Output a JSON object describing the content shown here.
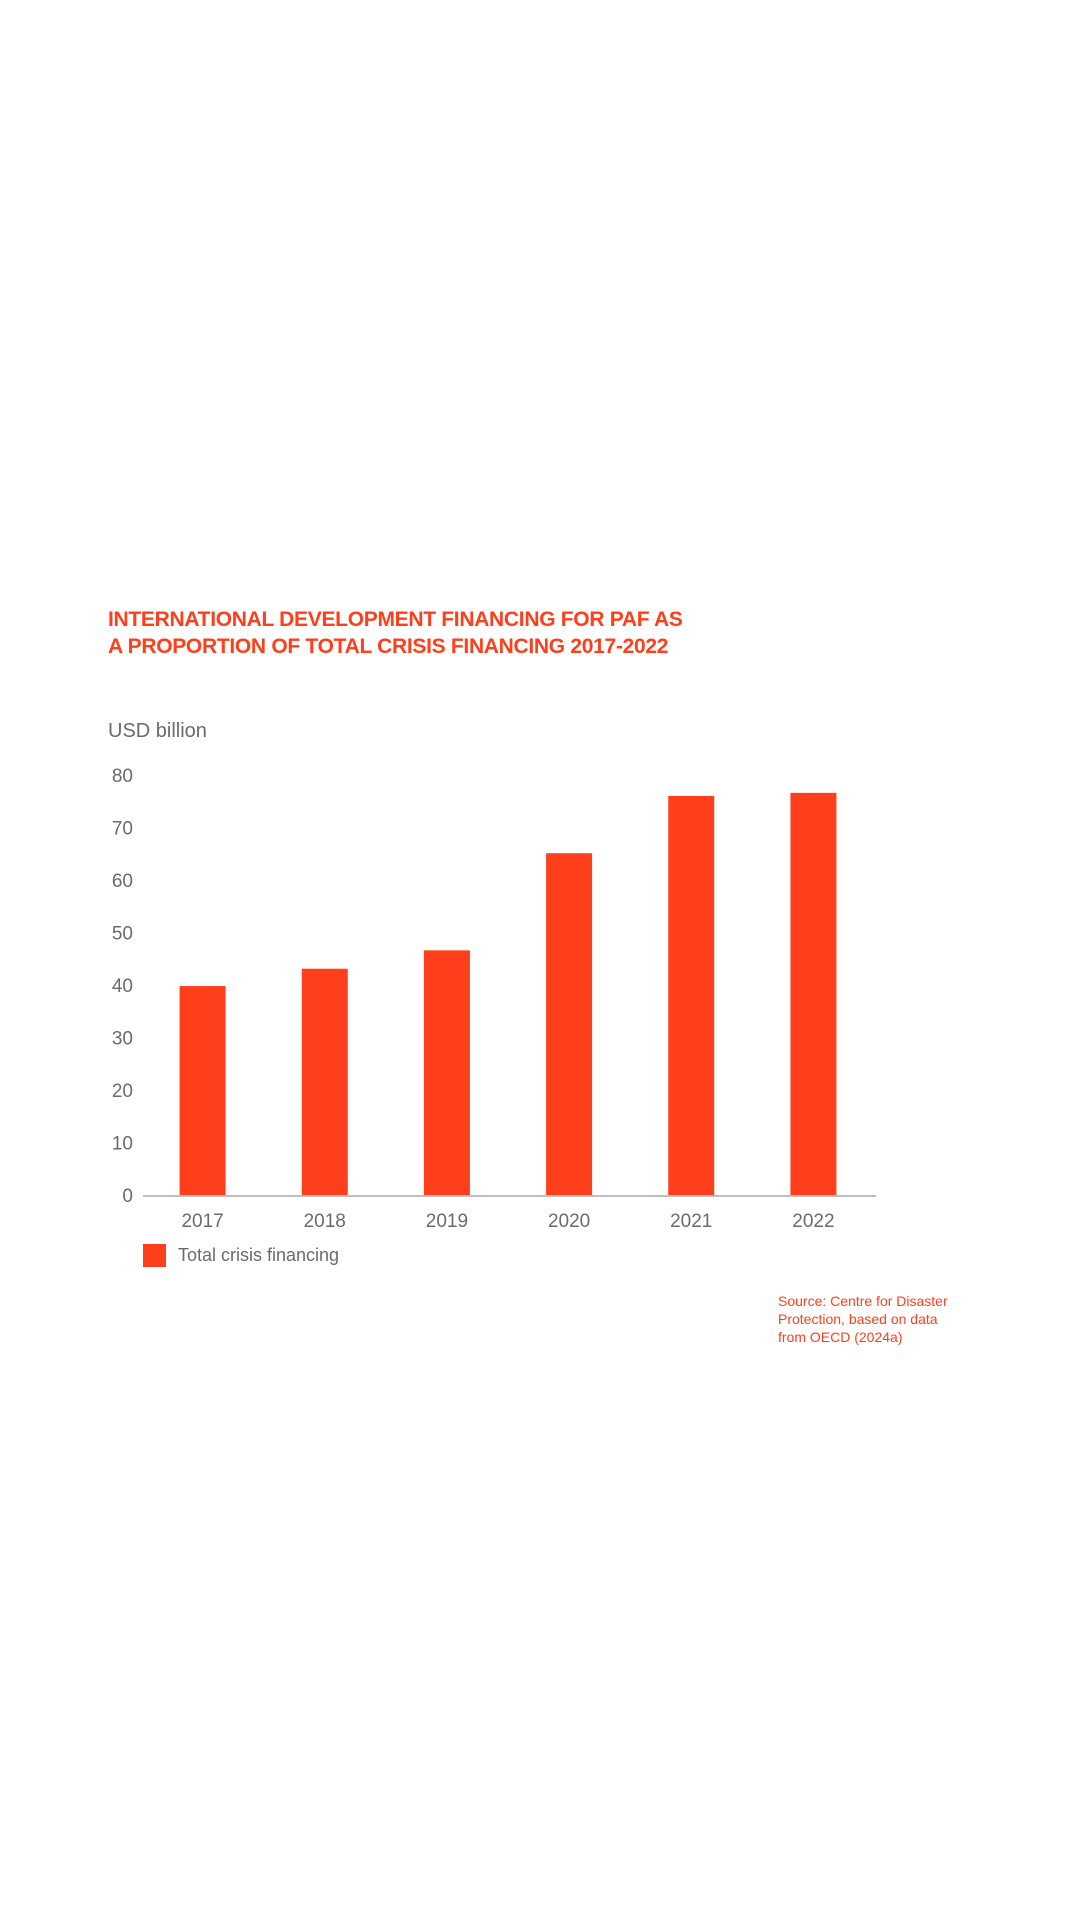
{
  "title": {
    "line1": "INTERNATIONAL DEVELOPMENT FINANCING FOR PAF AS",
    "line2": "A PROPORTION OF TOTAL CRISIS FINANCING 2017-2022"
  },
  "colors": {
    "accent": "#ff3f1c",
    "text": "#6b6b6b",
    "axis": "#bfbfbf"
  },
  "legend": {
    "label": "Total crisis financing",
    "color": "#ff3f1c"
  },
  "source": {
    "line1": "Source: Centre for Disaster",
    "line2": "Protection, based on data",
    "line3": "from OECD (2024a)"
  },
  "chart_data": {
    "type": "bar",
    "title": "INTERNATIONAL DEVELOPMENT FINANCING FOR PAF AS A PROPORTION OF TOTAL CRISIS FINANCING 2017-2022",
    "ylabel": "USD billion",
    "xlabel": "",
    "categories": [
      "2017",
      "2018",
      "2019",
      "2020",
      "2021",
      "2022"
    ],
    "series": [
      {
        "name": "Total crisis financing",
        "values": [
          39.8,
          43.1,
          46.6,
          65.1,
          76.0,
          76.6
        ],
        "color": "#ff3f1c"
      }
    ],
    "ylim": [
      0,
      80
    ],
    "yticks": [
      0,
      10,
      20,
      30,
      40,
      50,
      60,
      70,
      80
    ],
    "grid": false,
    "legend_position": "bottom-left"
  }
}
